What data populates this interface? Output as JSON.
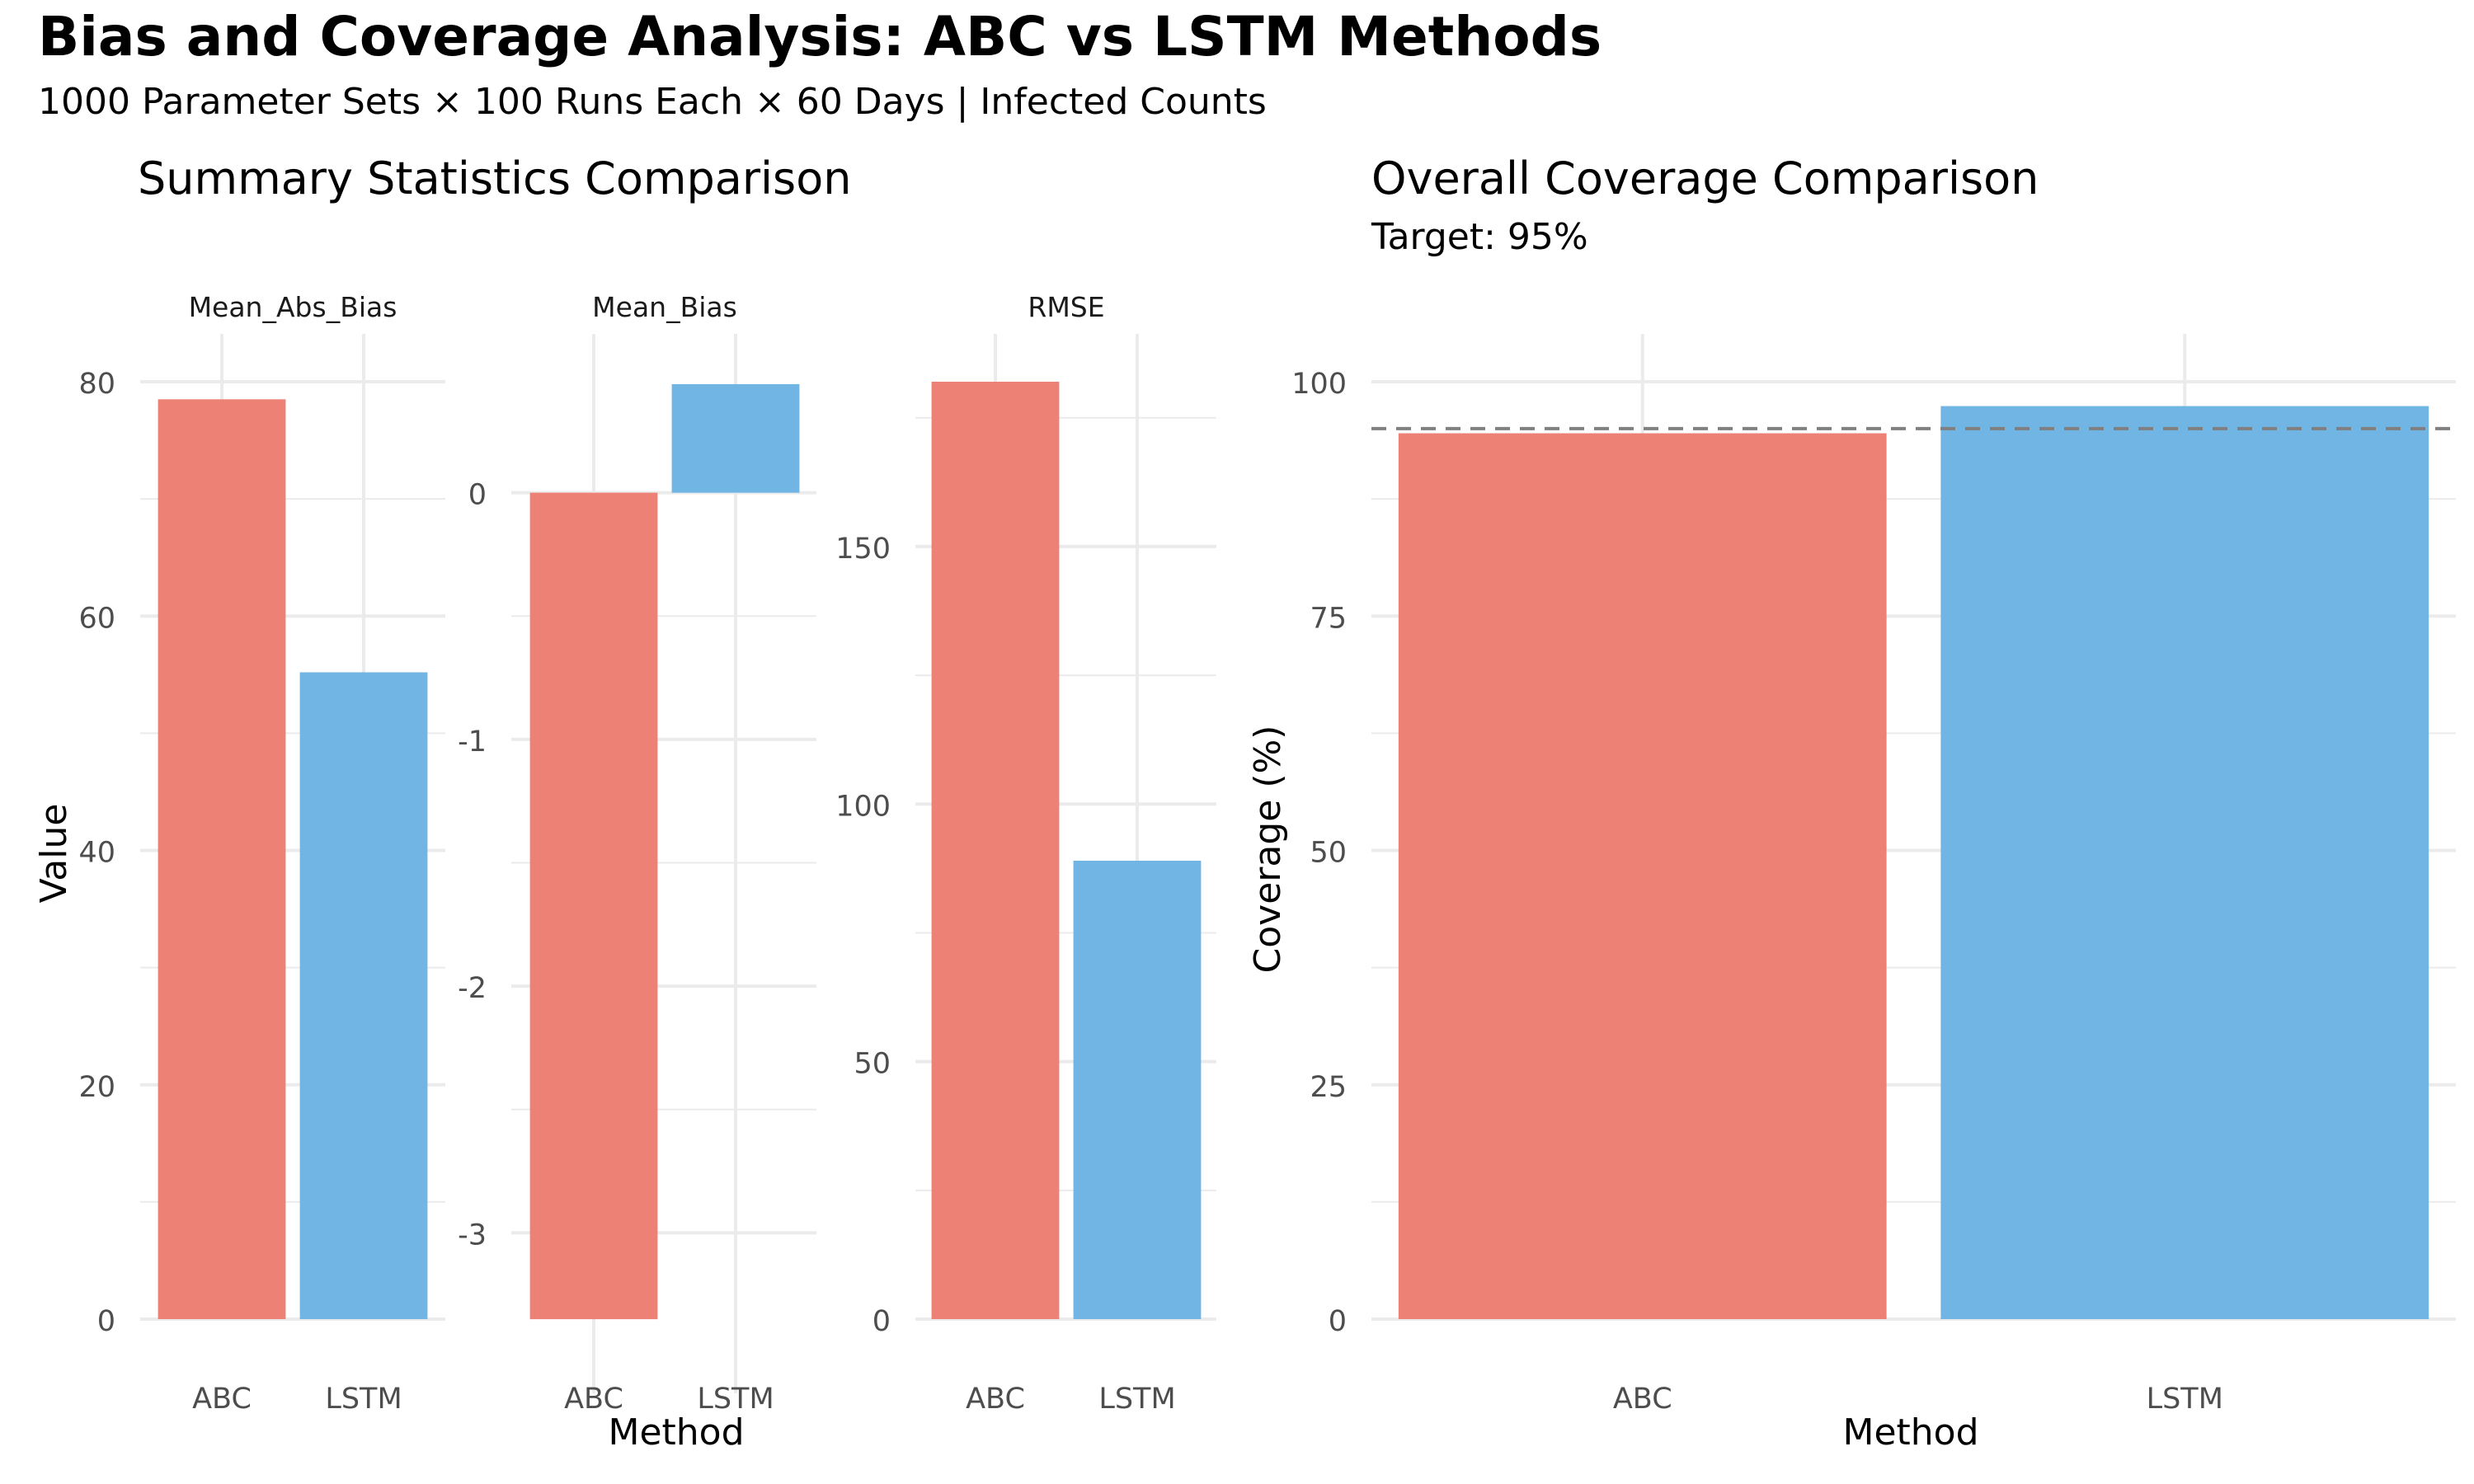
{
  "title": "Bias and Coverage Analysis: ABC vs LSTM Methods",
  "subtitle": "1000 Parameter Sets × 100 Runs Each × 60 Days | Infected Counts",
  "colors": {
    "ABC": "#ED8176",
    "LSTM": "#70B5E4",
    "grid": "#EBEBEB",
    "target_line": "#808080"
  },
  "chart_data": [
    {
      "type": "bar",
      "title": "Summary Statistics Comparison",
      "xlabel": "Method",
      "ylabel": "Value",
      "categories": [
        "ABC",
        "LSTM"
      ],
      "facets": [
        {
          "name": "Mean_Abs_Bias",
          "values": [
            78.5,
            55.2
          ],
          "ylim": [
            0,
            80
          ],
          "ticks": [
            0,
            20,
            40,
            60,
            80
          ],
          "tick_labels": [
            "0",
            "20",
            "40",
            "60",
            "80"
          ]
        },
        {
          "name": "Mean_Bias",
          "values": [
            -3.35,
            0.44
          ],
          "ylim": [
            -3.5,
            0.5
          ],
          "ticks": [
            -3,
            -2,
            -1,
            0
          ],
          "tick_labels": [
            "-3",
            "-2",
            "-1",
            "0"
          ]
        },
        {
          "name": "RMSE",
          "values": [
            182,
            89
          ],
          "ylim": [
            0,
            182
          ],
          "ticks": [
            0,
            50,
            100,
            150
          ],
          "tick_labels": [
            "0",
            "50",
            "100",
            "150"
          ]
        }
      ]
    },
    {
      "type": "bar",
      "title": "Overall Coverage Comparison",
      "subtitle": "Target: 95%",
      "xlabel": "Method",
      "ylabel": "Coverage (%)",
      "categories": [
        "ABC",
        "LSTM"
      ],
      "values": [
        94.5,
        97.4
      ],
      "target": 95,
      "ylim": [
        0,
        100
      ],
      "ticks": [
        0,
        25,
        50,
        75,
        100
      ],
      "tick_labels": [
        "0",
        "25",
        "50",
        "75",
        "100"
      ]
    }
  ]
}
